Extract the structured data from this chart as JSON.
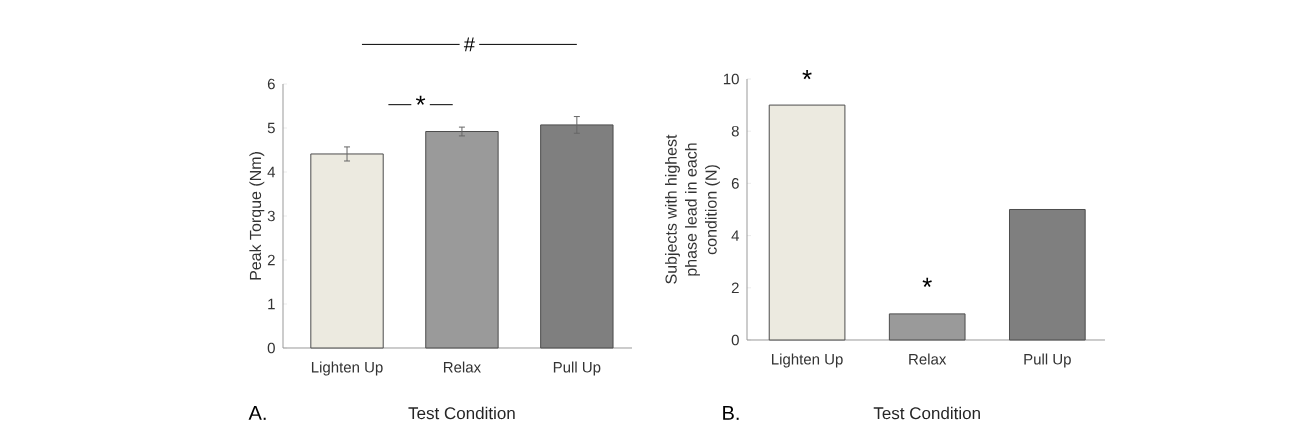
{
  "chart_data": [
    {
      "type": "bar",
      "categories": [
        "Lighten Up",
        "Relax",
        "Pull Up"
      ],
      "values": [
        4.41,
        4.92,
        5.07
      ],
      "errors": [
        0.16,
        0.1,
        0.19
      ],
      "colors": [
        "#eceae0",
        "#9a9a9a",
        "#7f7f7f"
      ],
      "ylabel": "Peak Torque (Nm)",
      "xlabel": "Test Condition",
      "ylim": [
        0,
        6
      ],
      "yticks": [
        0,
        1,
        2,
        3,
        4,
        5,
        6
      ],
      "annotations": [
        "#",
        "*",
        "A."
      ]
    },
    {
      "type": "bar",
      "categories": [
        "Lighten Up",
        "Relax",
        "Pull Up"
      ],
      "values": [
        9,
        1,
        5
      ],
      "colors": [
        "#eceae0",
        "#9a9a9a",
        "#7f7f7f"
      ],
      "ylabel": "Subjects with highest phase lead in each condition (N)",
      "xlabel": "Test Condition",
      "ylim": [
        0,
        10
      ],
      "yticks": [
        0,
        2,
        4,
        6,
        8,
        10
      ],
      "annotations": [
        "*",
        "*",
        "B."
      ]
    }
  ]
}
